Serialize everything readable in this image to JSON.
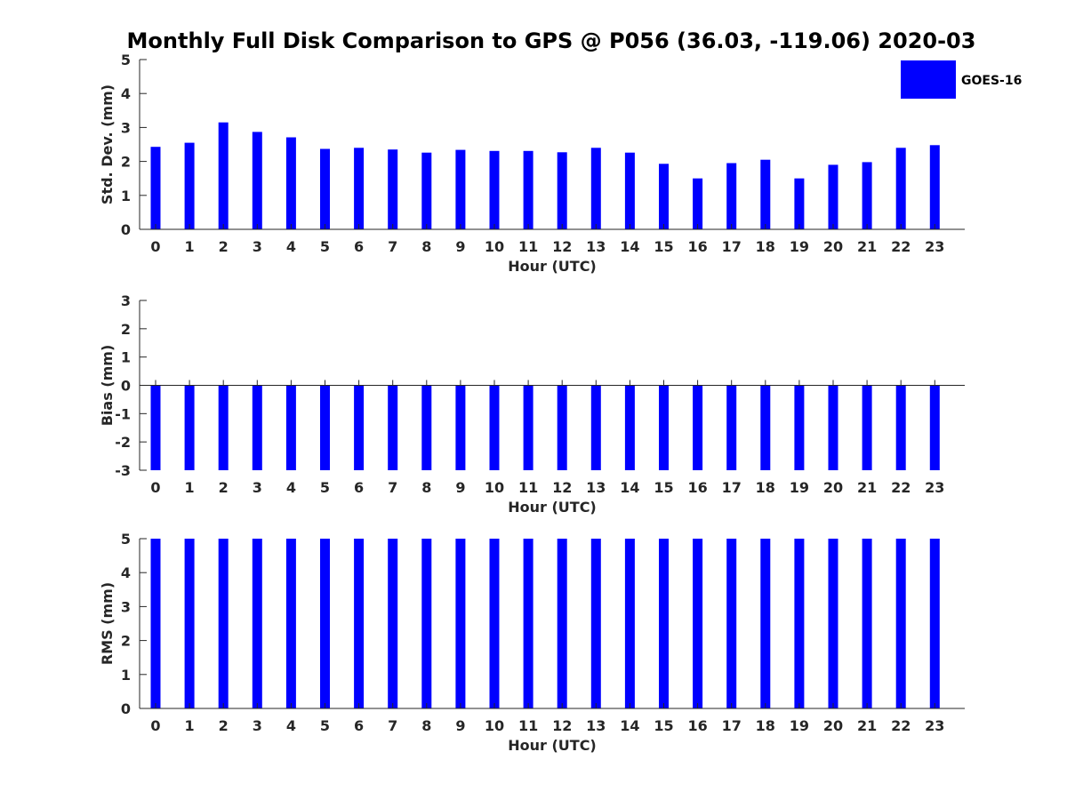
{
  "colors": {
    "bar": "#0000ff",
    "axis": "#262626",
    "background": "#ffffff"
  },
  "chart_data": {
    "title": "Monthly Full Disk Comparison to GPS @ P056 (36.03, -119.06) 2020-03",
    "legend": {
      "label": "GOES-16",
      "placement": "top-right"
    },
    "categories": [
      "0",
      "1",
      "2",
      "3",
      "4",
      "5",
      "6",
      "7",
      "8",
      "9",
      "10",
      "11",
      "12",
      "13",
      "14",
      "15",
      "16",
      "17",
      "18",
      "19",
      "20",
      "21",
      "22",
      "23"
    ],
    "panels": [
      {
        "type": "bar",
        "series": [
          {
            "name": "GOES-16",
            "values": [
              2.43,
              2.55,
              3.15,
              2.87,
              2.71,
              2.37,
              2.4,
              2.35,
              2.26,
              2.34,
              2.31,
              2.31,
              2.27,
              2.4,
              2.26,
              1.93,
              1.5,
              1.95,
              2.05,
              1.5,
              1.9,
              1.98,
              2.4,
              2.48
            ]
          }
        ],
        "xlabel": "Hour (UTC)",
        "ylabel": "Std. Dev. (mm)",
        "ylim": [
          0,
          5
        ],
        "yticks": [
          "0",
          "1",
          "2",
          "3",
          "4",
          "5"
        ]
      },
      {
        "type": "bar",
        "series": [
          {
            "name": "GOES-16",
            "values": [
              -3,
              -3,
              -3,
              -3,
              -3,
              -3,
              -3,
              -3,
              -3,
              -3,
              -3,
              -3,
              -3,
              -3,
              -3,
              -3,
              -3,
              -3,
              -3,
              -3,
              -3,
              -3,
              -3,
              -3
            ]
          }
        ],
        "xlabel": "Hour (UTC)",
        "ylabel": "Bias (mm)",
        "ylim": [
          -3,
          3
        ],
        "yticks": [
          "-3",
          "-2",
          "-1",
          "0",
          "1",
          "2",
          "3"
        ]
      },
      {
        "type": "bar",
        "series": [
          {
            "name": "GOES-16",
            "values": [
              5,
              5,
              5,
              5,
              5,
              5,
              5,
              5,
              5,
              5,
              5,
              5,
              5,
              5,
              5,
              5,
              5,
              5,
              5,
              5,
              5,
              5,
              5,
              5
            ]
          }
        ],
        "xlabel": "Hour (UTC)",
        "ylabel": "RMS (mm)",
        "ylim": [
          0,
          5
        ],
        "yticks": [
          "0",
          "1",
          "2",
          "3",
          "4",
          "5"
        ]
      }
    ]
  }
}
